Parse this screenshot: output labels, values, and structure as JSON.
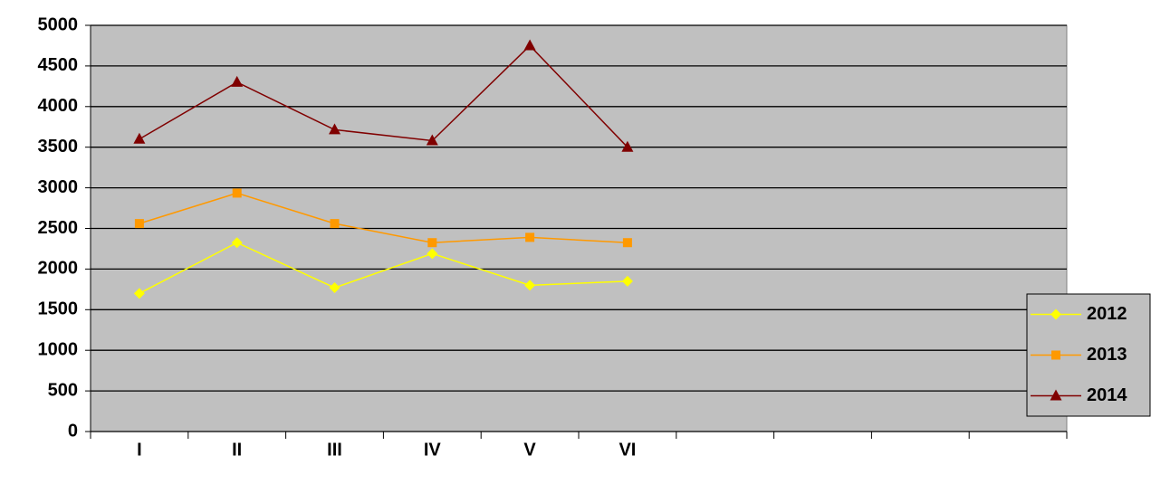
{
  "chart_data": {
    "type": "line",
    "categories": [
      "I",
      "II",
      "III",
      "IV",
      "V",
      "VI",
      null,
      null,
      null,
      null
    ],
    "series": [
      {
        "name": "2012",
        "color": "#ffff00",
        "marker": "diamond",
        "values": [
          1700,
          2325,
          1770,
          2190,
          1800,
          1850,
          null,
          null,
          null,
          null
        ]
      },
      {
        "name": "2013",
        "color": "#ff9900",
        "marker": "square",
        "values": [
          2560,
          2935,
          2560,
          2325,
          2390,
          2325,
          null,
          null,
          null,
          null
        ]
      },
      {
        "name": "2014",
        "color": "#800000",
        "marker": "triangle",
        "values": [
          3600,
          4300,
          3715,
          3580,
          4750,
          3500,
          null,
          null,
          null,
          null
        ]
      }
    ],
    "ylim": [
      0,
      5000
    ],
    "yticks": [
      0,
      500,
      1000,
      1500,
      2000,
      2500,
      3000,
      3500,
      4000,
      4500,
      5000
    ],
    "grid": true,
    "plot_background": "#c0c0c0",
    "legend": "right"
  }
}
